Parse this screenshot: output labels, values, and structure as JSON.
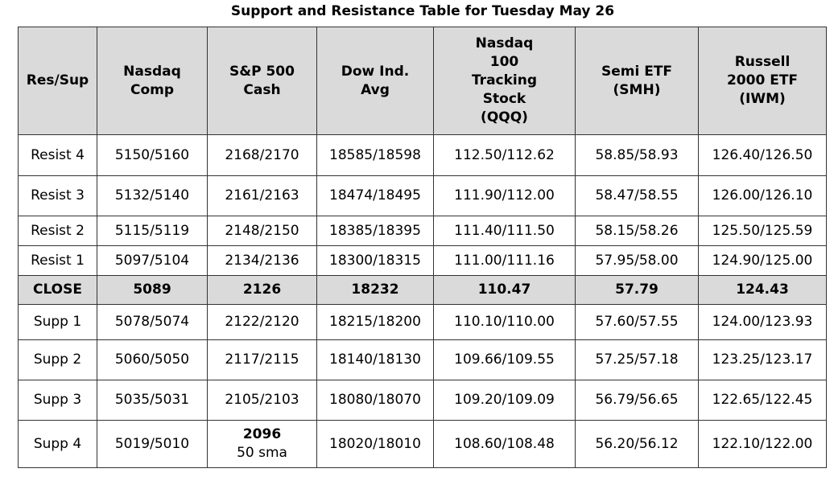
{
  "title": "Support and Resistance Table for Tuesday May 26",
  "headers": [
    [
      "Res/Sup"
    ],
    [
      "Nasdaq",
      "Comp"
    ],
    [
      "S&P 500",
      "Cash"
    ],
    [
      "Dow Ind.",
      "Avg"
    ],
    [
      "Nasdaq",
      "100",
      "Tracking",
      "Stock",
      "(QQQ)"
    ],
    [
      "Semi ETF",
      "(SMH)"
    ],
    [
      "Russell",
      "2000 ETF",
      "(IWM)"
    ]
  ],
  "rows": [
    {
      "label": "Resist 4",
      "cells": [
        "5150/5160",
        "2168/2170",
        "18585/18598",
        "112.50/112.62",
        "58.85/58.93",
        "126.40/126.50"
      ]
    },
    {
      "label": "Resist 3",
      "cells": [
        "5132/5140",
        "2161/2163",
        "18474/18495",
        "111.90/112.00",
        "58.47/58.55",
        "126.00/126.10"
      ]
    },
    {
      "label": "Resist 2",
      "cells": [
        "5115/5119",
        "2148/2150",
        "18385/18395",
        "111.40/111.50",
        "58.15/58.26",
        "125.50/125.59"
      ]
    },
    {
      "label": "Resist 1",
      "cells": [
        "5097/5104",
        "2134/2136",
        "18300/18315",
        "111.00/111.16",
        "57.95/58.00",
        "124.90/125.00"
      ]
    },
    {
      "label": "CLOSE",
      "cells": [
        "5089",
        "2126",
        "18232",
        "110.47",
        "57.79",
        "124.43"
      ]
    },
    {
      "label": "Supp 1",
      "cells": [
        "5078/5074",
        "2122/2120",
        "18215/18200",
        "110.10/110.00",
        "57.60/57.55",
        "124.00/123.93"
      ]
    },
    {
      "label": "Supp 2",
      "cells": [
        "5060/5050",
        "2117/2115",
        "18140/18130",
        "109.66/109.55",
        "57.25/57.18",
        "123.25/123.17"
      ]
    },
    {
      "label": "Supp 3",
      "cells": [
        "5035/5031",
        "2105/2103",
        "18080/18070",
        "109.20/109.09",
        "56.79/56.65",
        "122.65/122.45"
      ]
    },
    {
      "label": "Supp 4",
      "cells": [
        "5019/5010",
        "2096\n50 sma",
        "18020/18010",
        "108.60/108.48",
        "56.20/56.12",
        "122.10/122.00"
      ]
    }
  ]
}
